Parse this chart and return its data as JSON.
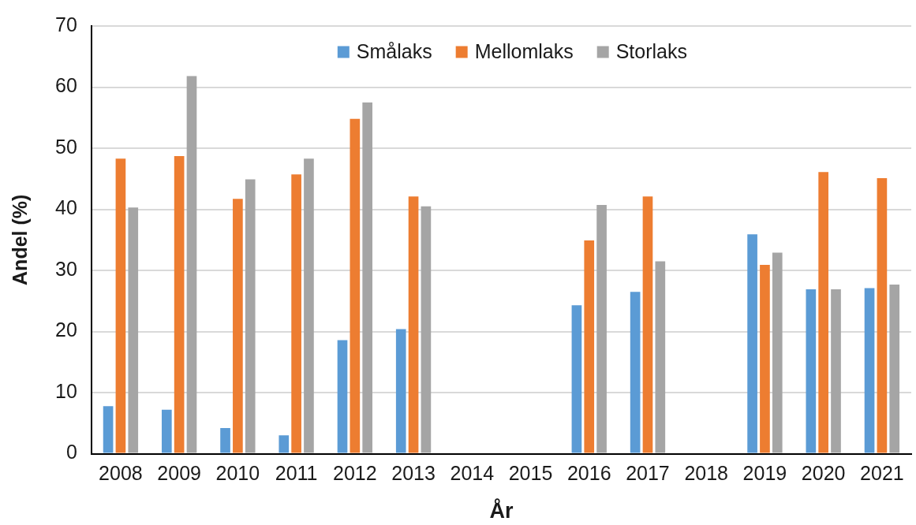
{
  "chart_data": {
    "type": "bar",
    "xlabel": "År",
    "ylabel": "Andel (%)",
    "categories": [
      "2008",
      "2009",
      "2010",
      "2011",
      "2012",
      "2013",
      "2014",
      "2015",
      "2016",
      "2017",
      "2018",
      "2019",
      "2020",
      "2021"
    ],
    "series": [
      {
        "name": "Smålaks",
        "color": "#5b9bd5",
        "values": [
          7.8,
          7.2,
          4.2,
          3.0,
          18.6,
          20.4,
          null,
          null,
          24.3,
          26.5,
          null,
          35.9,
          26.9,
          27.1
        ]
      },
      {
        "name": "Mellomlaks",
        "color": "#ed7d31",
        "values": [
          48.3,
          48.7,
          41.7,
          45.7,
          54.8,
          42.1,
          null,
          null,
          34.9,
          42.1,
          null,
          30.9,
          46.1,
          45.1
        ]
      },
      {
        "name": "Storlaks",
        "color": "#a5a5a5",
        "values": [
          40.3,
          61.8,
          44.9,
          48.3,
          57.5,
          40.5,
          null,
          null,
          40.7,
          31.5,
          null,
          32.9,
          26.9,
          27.7
        ]
      }
    ],
    "ylim": [
      0,
      70
    ],
    "yticks": [
      0,
      10,
      20,
      30,
      40,
      50,
      60,
      70
    ],
    "grid": "y",
    "legend": "top"
  }
}
